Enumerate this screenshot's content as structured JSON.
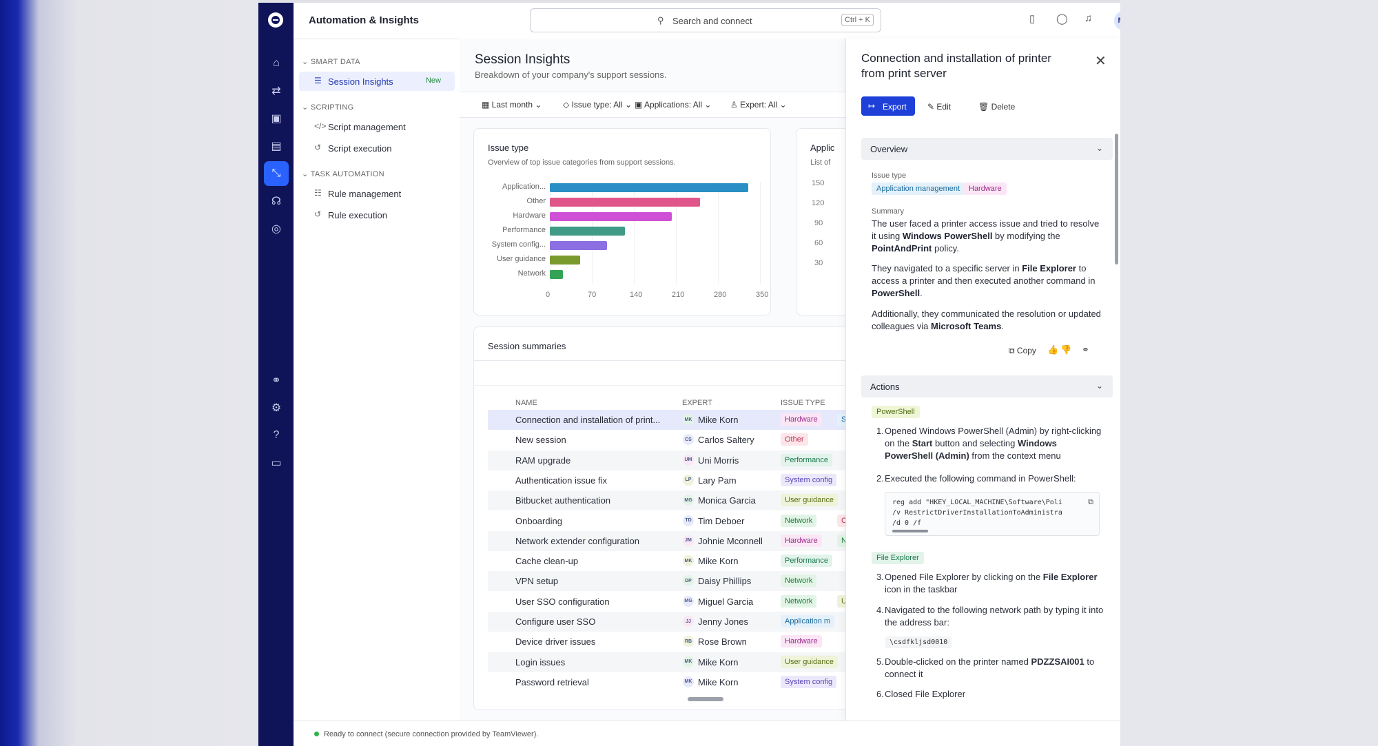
{
  "app": {
    "title": "Automation & Insights",
    "search_placeholder": "Search and connect",
    "search_shortcut": "Ctrl + K",
    "avatar_initials": "MK"
  },
  "sidebar": {
    "sections": [
      {
        "label": "SMART DATA"
      },
      {
        "label": "SCRIPTING"
      },
      {
        "label": "TASK AUTOMATION"
      }
    ],
    "items": [
      {
        "label": "Session Insights",
        "badge": "New",
        "icon": "sparkle-list-icon"
      },
      {
        "label": "Script management",
        "icon": "code-icon"
      },
      {
        "label": "Script execution",
        "icon": "history-icon"
      },
      {
        "label": "Rule management",
        "icon": "list-icon"
      },
      {
        "label": "Rule execution",
        "icon": "history-icon"
      }
    ]
  },
  "main": {
    "title": "Session Insights",
    "subtitle": "Breakdown of your company's support sessions.",
    "filters": [
      "Last month",
      "Issue type: All",
      "Applications: All",
      "Expert: All"
    ],
    "issue_card": {
      "title": "Issue type",
      "subtitle": "Overview of top issue categories from support sessions."
    },
    "apps_card": {
      "title": "Applic",
      "subtitle": "List of",
      "ticks": [
        "150",
        "120",
        "90",
        "60",
        "30"
      ]
    },
    "summaries": {
      "title": "Session summaries",
      "columns": [
        "NAME",
        "EXPERT",
        "ISSUE TYPE"
      ],
      "rows": [
        {
          "name": "Connection and installation of print...",
          "expert": "Mike Korn",
          "initials": "MK",
          "tag": "Hardware",
          "tag2": "S"
        },
        {
          "name": "New session",
          "expert": "Carlos Saltery",
          "initials": "CS",
          "tag": "Other",
          "tag2": ""
        },
        {
          "name": "RAM upgrade",
          "expert": "Uni Morris",
          "initials": "UM",
          "tag": "Performance",
          "tag2": ""
        },
        {
          "name": "Authentication issue fix",
          "expert": "Lary Pam",
          "initials": "LP",
          "tag": "System config",
          "tag2": ""
        },
        {
          "name": "Bitbucket authentication",
          "expert": "Monica Garcia",
          "initials": "MG",
          "tag": "User guidance",
          "tag2": ""
        },
        {
          "name": "Onboarding",
          "expert": "Tim Deboer",
          "initials": "TD",
          "tag": "Network",
          "tag2": "O"
        },
        {
          "name": "Network extender configuration",
          "expert": "Johnie Mconnell",
          "initials": "JM",
          "tag": "Hardware",
          "tag2": "N"
        },
        {
          "name": "Cache clean-up",
          "expert": "Mike Korn",
          "initials": "MK",
          "tag": "Performance",
          "tag2": ""
        },
        {
          "name": "VPN setup",
          "expert": "Daisy Phillips",
          "initials": "DP",
          "tag": "Network",
          "tag2": ""
        },
        {
          "name": "User SSO configuration",
          "expert": "Miguel Garcia",
          "initials": "MG",
          "tag": "Network",
          "tag2": "U"
        },
        {
          "name": "Configure user SSO",
          "expert": "Jenny Jones",
          "initials": "JJ",
          "tag": "Application m",
          "tag2": ""
        },
        {
          "name": "Device driver issues",
          "expert": "Rose Brown",
          "initials": "RB",
          "tag": "Hardware",
          "tag2": ""
        },
        {
          "name": "Login issues",
          "expert": "Mike Korn",
          "initials": "MK",
          "tag": "User guidance",
          "tag2": ""
        },
        {
          "name": "Password retrieval",
          "expert": "Mike Korn",
          "initials": "MK",
          "tag": "System config",
          "tag2": ""
        }
      ]
    }
  },
  "chart_data": {
    "type": "bar",
    "orientation": "horizontal",
    "title": "Issue type",
    "subtitle": "Overview of top issue categories from support sessions.",
    "categories": [
      "Application...",
      "Other",
      "Hardware",
      "Performance",
      "System config...",
      "User guidance",
      "Network"
    ],
    "values": [
      330,
      250,
      203,
      125,
      95,
      50,
      22
    ],
    "colors": [
      "#2a8fc4",
      "#e1568a",
      "#cf4fd6",
      "#3f9b85",
      "#8b6fe3",
      "#7b9a2e",
      "#35a356"
    ],
    "xticks": [
      "0",
      "70",
      "140",
      "210",
      "280",
      "350"
    ],
    "xlim": [
      0,
      350
    ],
    "grid": true
  },
  "panel": {
    "title": "Connection and installation of printer from print server",
    "export_label": "Export",
    "edit_label": "Edit",
    "delete_label": "Delete",
    "overview_label": "Overview",
    "issue_type_label": "Issue type",
    "issue_tags": [
      "Application management",
      "Hardware"
    ],
    "summary_label": "Summary",
    "summary_p1": [
      "The user faced a printer access issue and tried to resolve it using ",
      "Windows PowerShell",
      " by modifying the ",
      "PointAndPrint",
      " policy."
    ],
    "summary_p2": [
      "They navigated to a specific server in ",
      "File Explorer",
      " to access a printer and then executed another command in ",
      "PowerShell",
      "."
    ],
    "summary_p3": [
      "Additionally, they communicated the resolution or updated colleagues via ",
      "Microsoft Teams",
      "."
    ],
    "copy_label": "Copy",
    "actions_label": "Actions",
    "tag_powershell": "PowerShell",
    "tag_file_explorer": "File Explorer",
    "step1_num": "1.",
    "step1": [
      "Opened Windows PowerShell (Admin) by right-clicking on the ",
      "Start",
      " button and selecting ",
      "Windows PowerShell (Admin)",
      " from the context menu"
    ],
    "step2_num": "2.",
    "step2": "Executed the following command in PowerShell:",
    "code": "reg add \"HKEY_LOCAL_MACHINE\\Software\\Poli\n/v RestrictDriverInstallationToAdministra\n/d 0 /f",
    "step3_num": "3.",
    "step3": [
      "Opened File Explorer by clicking on the ",
      "File Explorer",
      " icon in the taskbar"
    ],
    "step4_num": "4.",
    "step4": "Navigated to the following network path by typing it into the address bar:",
    "path_code": "\\csdfkljsd0010",
    "step5_num": "5.",
    "step5": [
      "Double-clicked on the printer named ",
      "PDZZSAI001",
      " to connect it"
    ],
    "step6_num": "6.",
    "step6": "Closed File Explorer"
  },
  "status": {
    "text": "Ready to connect (secure connection provided by TeamViewer).",
    "color": "#2db34a"
  },
  "colors": {
    "accent": "#1e40d8",
    "rail": "#0f1458",
    "selected_row": "#e6e9fb"
  },
  "tag_colors": {
    "Hardware": [
      "#fbe6f6",
      "#9c2a8a"
    ],
    "Other": [
      "#fde6ea",
      "#b8304f"
    ],
    "Performance": [
      "#e1f3ea",
      "#1f7a4d"
    ],
    "System config": [
      "#ece8fb",
      "#5a45b5"
    ],
    "User guidance": [
      "#eef3d9",
      "#5b7018"
    ],
    "Network": [
      "#e2f4e6",
      "#1f7a3a"
    ],
    "Application m": [
      "#e4f1fb",
      "#1b6a9a"
    ],
    "Application management": [
      "#e4f1fb",
      "#1b6a9a"
    ],
    "S": [
      "#e4f1fb",
      "#1b6a9a"
    ],
    "O": [
      "#fde6ea",
      "#b8304f"
    ],
    "N": [
      "#e2f4e6",
      "#1f7a3a"
    ],
    "U": [
      "#eef3d9",
      "#5b7018"
    ],
    "PowerShell": [
      "#eef6d6",
      "#4f6b12"
    ],
    "File Explorer": [
      "#e2f4ea",
      "#1f7a4d"
    ]
  }
}
